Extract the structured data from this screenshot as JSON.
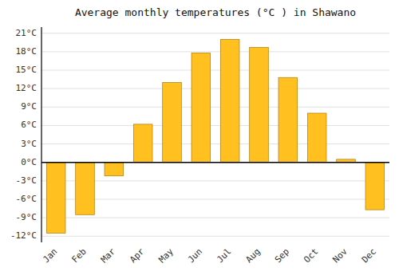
{
  "chart_data": {
    "type": "bar",
    "title": "Average monthly temperatures (°C ) in Shawano",
    "categories": [
      "Jan",
      "Feb",
      "Mar",
      "Apr",
      "May",
      "Jun",
      "Jul",
      "Aug",
      "Sep",
      "Oct",
      "Nov",
      "Dec"
    ],
    "values": [
      -11.5,
      -8.5,
      -2.2,
      6.2,
      13.0,
      17.8,
      20.0,
      18.7,
      13.8,
      8.0,
      0.5,
      -7.7
    ],
    "color": "#FFC020",
    "ylim": [
      -13,
      22
    ],
    "yticks": [
      {
        "value": -12,
        "label": "-12°C"
      },
      {
        "value": -9,
        "label": "-9°C"
      },
      {
        "value": -6,
        "label": "-6°C"
      },
      {
        "value": -3,
        "label": "-3°C"
      },
      {
        "value": 0,
        "label": "0°C"
      },
      {
        "value": 3,
        "label": "3°C"
      },
      {
        "value": 6,
        "label": "6°C"
      },
      {
        "value": 9,
        "label": "9°C"
      },
      {
        "value": 12,
        "label": "12°C"
      },
      {
        "value": 15,
        "label": "15°C"
      },
      {
        "value": 18,
        "label": "18°C"
      },
      {
        "value": 21,
        "label": "21°C"
      }
    ],
    "grid": true
  }
}
